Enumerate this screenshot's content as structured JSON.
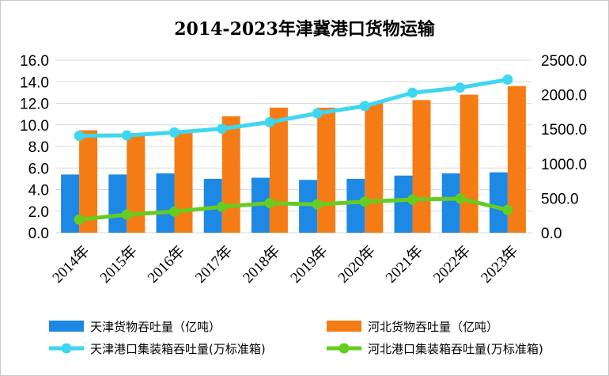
{
  "chart_data": {
    "type": "bar",
    "title": "2014-2023年津冀港口货物运输",
    "categories": [
      "2014年",
      "2015年",
      "2016年",
      "2017年",
      "2018年",
      "2019年",
      "2020年",
      "2021年",
      "2022年",
      "2023年"
    ],
    "y_left": {
      "min": 0,
      "max": 16,
      "step": 2,
      "tick_labels": [
        "0.0",
        "2.0",
        "4.0",
        "6.0",
        "8.0",
        "10.0",
        "12.0",
        "14.0",
        "16.0"
      ]
    },
    "y_right": {
      "min": 0,
      "max": 2500,
      "step": 500,
      "tick_labels": [
        "0.0",
        "500.0",
        "1000.0",
        "1500.0",
        "2000.0",
        "2500.0"
      ]
    },
    "grid": "horizontal",
    "legend_position": "bottom",
    "series": [
      {
        "name": "天津货物吞吐量（亿吨）",
        "type": "bar",
        "axis": "left",
        "color": "#1e88e5",
        "values": [
          5.4,
          5.4,
          5.5,
          5.0,
          5.1,
          4.9,
          5.0,
          5.3,
          5.5,
          5.6
        ]
      },
      {
        "name": "河北货物吞吐量（亿吨）",
        "type": "bar",
        "axis": "left",
        "color": "#f57c14",
        "values": [
          9.5,
          9.0,
          9.4,
          10.8,
          11.6,
          11.6,
          12.0,
          12.3,
          12.8,
          13.6
        ]
      },
      {
        "name": "天津港口集装箱吞吐量(万标准箱)",
        "type": "line",
        "axis": "right",
        "color": "#3fd6ef",
        "values": [
          1405,
          1410,
          1452,
          1507,
          1601,
          1730,
          1835,
          2027,
          2102,
          2218
        ]
      },
      {
        "name": "河北港口集装箱吞吐量(万标准箱)",
        "type": "line",
        "axis": "right",
        "color": "#66cc22",
        "values": [
          190,
          262,
          306,
          375,
          430,
          410,
          450,
          480,
          495,
          330
        ]
      }
    ]
  }
}
